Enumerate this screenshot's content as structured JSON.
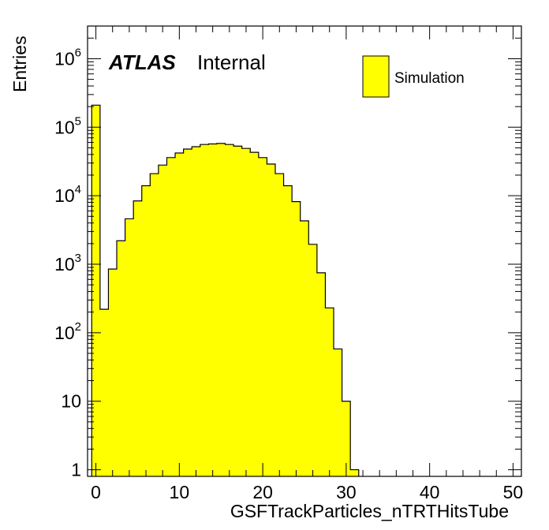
{
  "chart_data": {
    "type": "bar",
    "histtype": "stepfilled",
    "fill_color": "#ffff00",
    "line_color": "#000000",
    "xlabel": "GSFTrackParticles_nTRTHitsTube",
    "ylabel": "Entries",
    "xlim": [
      -1,
      51
    ],
    "ylim": [
      0.8,
      3000000
    ],
    "yscale": "log",
    "bin_width": 1,
    "x_ticks": [
      "0",
      "10",
      "20",
      "30",
      "40",
      "50"
    ],
    "y_ticks": [
      {
        "base": "1",
        "exp": ""
      },
      {
        "base": "10",
        "exp": ""
      },
      {
        "base": "10",
        "exp": "2"
      },
      {
        "base": "10",
        "exp": "3"
      },
      {
        "base": "10",
        "exp": "4"
      },
      {
        "base": "10",
        "exp": "5"
      },
      {
        "base": "10",
        "exp": "6"
      }
    ],
    "bins": [
      {
        "x": 0,
        "y": 210000
      },
      {
        "x": 1,
        "y": 220
      },
      {
        "x": 2,
        "y": 850
      },
      {
        "x": 3,
        "y": 2200
      },
      {
        "x": 4,
        "y": 4600
      },
      {
        "x": 5,
        "y": 8400
      },
      {
        "x": 6,
        "y": 14000
      },
      {
        "x": 7,
        "y": 21000
      },
      {
        "x": 8,
        "y": 28000
      },
      {
        "x": 9,
        "y": 36000
      },
      {
        "x": 10,
        "y": 42000
      },
      {
        "x": 11,
        "y": 48000
      },
      {
        "x": 12,
        "y": 52000
      },
      {
        "x": 13,
        "y": 56000
      },
      {
        "x": 14,
        "y": 57000
      },
      {
        "x": 15,
        "y": 58000
      },
      {
        "x": 16,
        "y": 56000
      },
      {
        "x": 17,
        "y": 53000
      },
      {
        "x": 18,
        "y": 49000
      },
      {
        "x": 19,
        "y": 43000
      },
      {
        "x": 20,
        "y": 36000
      },
      {
        "x": 21,
        "y": 29000
      },
      {
        "x": 22,
        "y": 21000
      },
      {
        "x": 23,
        "y": 14000
      },
      {
        "x": 24,
        "y": 8200
      },
      {
        "x": 25,
        "y": 4300
      },
      {
        "x": 26,
        "y": 1950
      },
      {
        "x": 27,
        "y": 750
      },
      {
        "x": 28,
        "y": 230
      },
      {
        "x": 29,
        "y": 58
      },
      {
        "x": 30,
        "y": 10
      },
      {
        "x": 31,
        "y": 1
      }
    ],
    "legend": {
      "label": "Simulation",
      "position": "top-right"
    },
    "annotation": {
      "atlas": "ATLAS",
      "status": "Internal"
    }
  }
}
